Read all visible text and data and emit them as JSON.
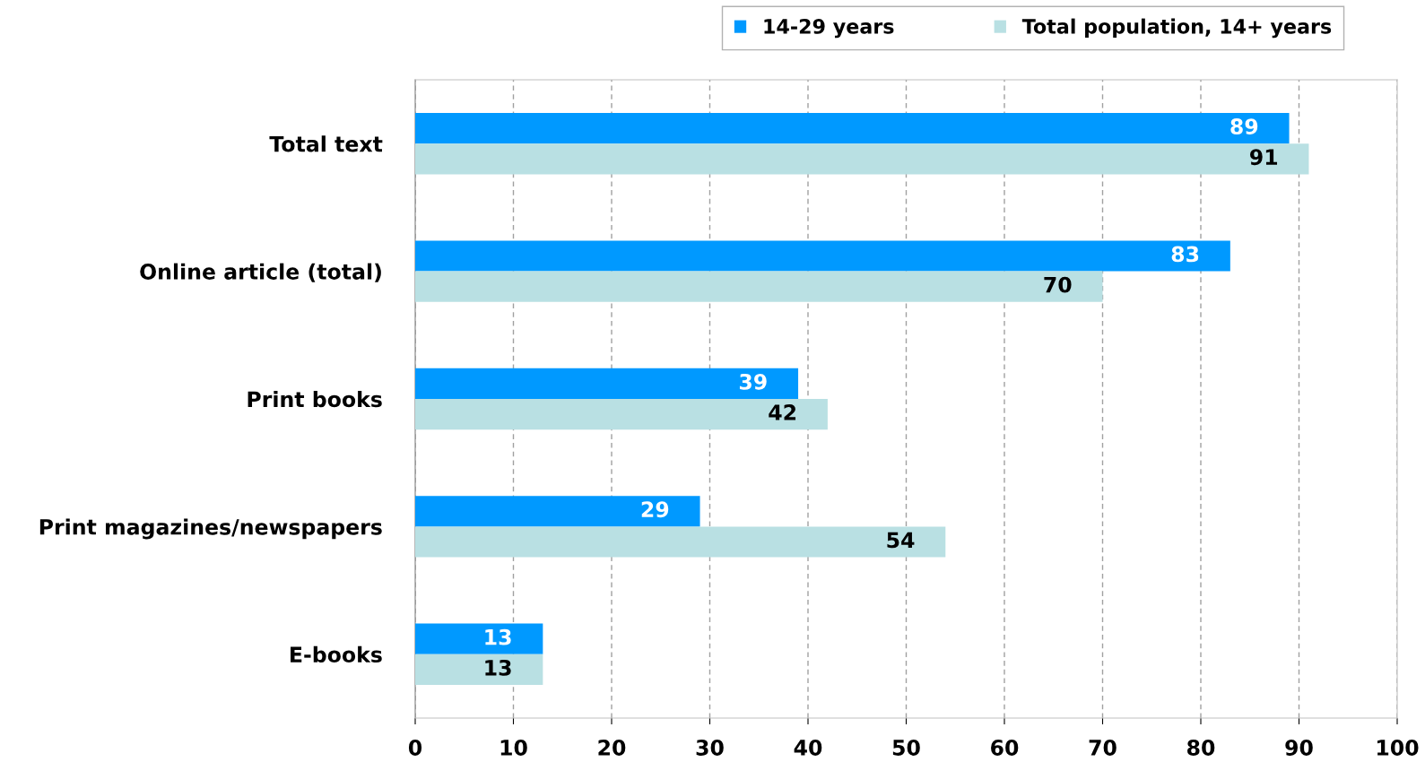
{
  "chart_data": {
    "type": "bar",
    "orientation": "horizontal",
    "categories": [
      "Total text",
      "Online article (total)",
      "Print books",
      "Print magazines/newspapers",
      "E-books"
    ],
    "series": [
      {
        "name": "14-29 years",
        "color": "#0099ff",
        "values": [
          89,
          83,
          39,
          29,
          13
        ]
      },
      {
        "name": "Total population, 14+ years",
        "color": "#b9e0e3",
        "values": [
          91,
          70,
          42,
          54,
          13
        ]
      }
    ],
    "xlim": [
      0,
      100
    ],
    "xticks": [
      0,
      10,
      20,
      30,
      40,
      50,
      60,
      70,
      80,
      90,
      100
    ],
    "grid": "x",
    "legend": "top",
    "data_labels": true
  }
}
